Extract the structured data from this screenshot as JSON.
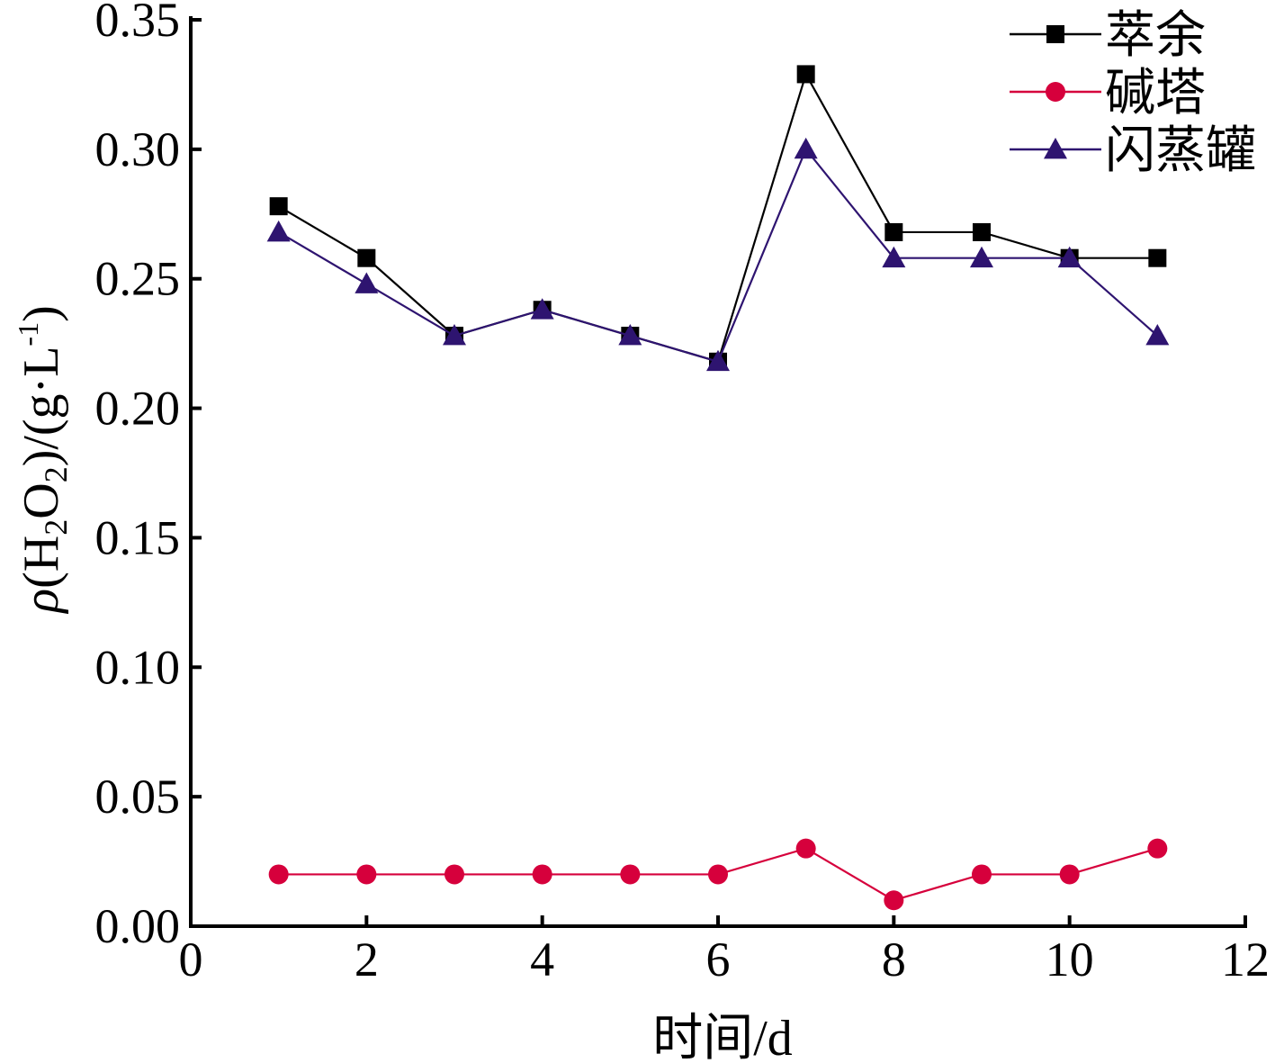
{
  "chart_data": {
    "type": "line",
    "title": "",
    "xlabel": "时间/d",
    "ylabel": {
      "rho": "ρ",
      "open": "(H",
      "sub": "2",
      "mid": "O",
      "sub2": "2",
      "close": ")/(g·L",
      "sup": "-1",
      "end": ")"
    },
    "xlim": [
      0,
      12
    ],
    "ylim": [
      0,
      0.35
    ],
    "xticks": [
      "0",
      "2",
      "4",
      "6",
      "8",
      "10",
      "12"
    ],
    "yticks": [
      "0.00",
      "0.05",
      "0.10",
      "0.15",
      "0.20",
      "0.25",
      "0.30",
      "0.35"
    ],
    "grid": false,
    "legend_position": "top-right",
    "x": [
      1,
      2,
      3,
      4,
      5,
      6,
      7,
      8,
      9,
      10,
      11
    ],
    "series": [
      {
        "name": "萃余",
        "color": "#000000",
        "marker": "square",
        "values": [
          0.278,
          0.258,
          0.228,
          0.238,
          0.228,
          0.218,
          0.329,
          0.268,
          0.268,
          0.258,
          0.258
        ]
      },
      {
        "name": "碱塔",
        "color": "#d6003c",
        "marker": "circle",
        "values": [
          0.02,
          0.02,
          0.02,
          0.02,
          0.02,
          0.02,
          0.03,
          0.01,
          0.02,
          0.02,
          0.03
        ]
      },
      {
        "name": "闪蒸罐",
        "color": "#2e1470",
        "marker": "triangle",
        "values": [
          0.268,
          0.248,
          0.228,
          0.238,
          0.228,
          0.218,
          0.3,
          0.258,
          0.258,
          0.258,
          0.228
        ]
      }
    ]
  }
}
